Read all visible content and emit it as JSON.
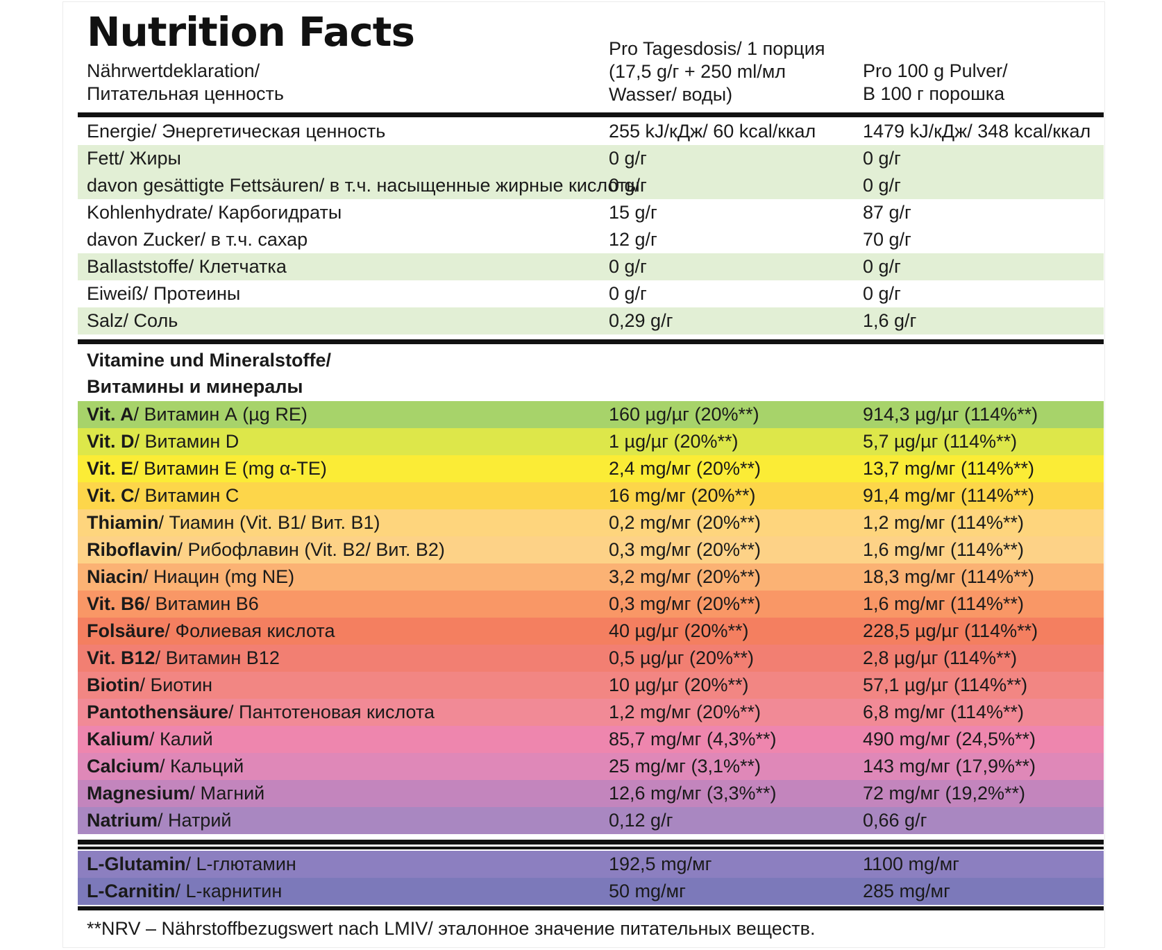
{
  "title": "Nutrition Facts",
  "header": {
    "label_line1": "Nährwertdeklaration/",
    "label_line2": "Питательная ценность",
    "col1_line1": "Pro Tagesdosis/ 1 порция",
    "col1_line2": "(17,5 g/г + 250 ml/мл",
    "col1_line3": "Wasser/ воды)",
    "col2_line1": "Pro 100 g Pulver/",
    "col2_line2": "В 100 г порошка"
  },
  "nutrients": [
    {
      "label": "Energie/ Энергетическая ценность",
      "per_serving": "255 kJ/кДж/ 60 kcal/ккал",
      "per_100g": "1479 kJ/кДж/ 348 kcal/ккал"
    },
    {
      "label": "Fett/ Жиры",
      "per_serving": "0 g/г",
      "per_100g": "0 g/г"
    },
    {
      "label": "davon gesättigte Fettsäuren/ в т.ч. насыщенные жирные кислоты",
      "per_serving": "0 g/г",
      "per_100g": "0 g/г"
    },
    {
      "label": "Kohlenhydrate/ Карбогидраты",
      "per_serving": "15 g/г",
      "per_100g": "87 g/г"
    },
    {
      "label": "davon Zucker/ в т.ч. сахар",
      "per_serving": "12 g/г",
      "per_100g": "70 g/г"
    },
    {
      "label": "Ballaststoffe/ Клетчатка",
      "per_serving": "0 g/г",
      "per_100g": "0 g/г"
    },
    {
      "label": "Eiweiß/ Протеины",
      "per_serving": "0 g/г",
      "per_100g": "0 g/г"
    },
    {
      "label": "Salz/ Соль",
      "per_serving": "0,29 g/г",
      "per_100g": "1,6 g/г"
    }
  ],
  "vitamins_section": {
    "title_line1": "Vitamine und Mineralstoffe/",
    "title_line2": "Витамины и минералы"
  },
  "vitamins": [
    {
      "bold": "Vit. A",
      "rest": "/ Витамин А (µg RE)",
      "per_serving": "160 µg/µг (20%**)",
      "per_100g": "914,3 µg/µг (114%**)",
      "color": "#a7d36a"
    },
    {
      "bold": "Vit. D",
      "rest": "/ Витамин D",
      "per_serving": "1 µg/µг (20%**)",
      "per_100g": "5,7 µg/µг (114%**)",
      "color": "#dde74a"
    },
    {
      "bold": "Vit. E",
      "rest": "/ Витамин Е (mg α-TE)",
      "per_serving": "2,4 mg/мг (20%**)",
      "per_100g": "13,7 mg/мг (114%**)",
      "color": "#fbec36"
    },
    {
      "bold": "Vit. C",
      "rest": "/ Витамин С",
      "per_serving": "16 mg/мг (20%**)",
      "per_100g": "91,4 mg/мг (114%**)",
      "color": "#fdd64a"
    },
    {
      "bold": "Thiamin",
      "rest": "/ Тиамин (Vit. B1/ Вит. B1)",
      "per_serving": "0,2 mg/мг (20%**)",
      "per_100g": "1,2 mg/мг (114%**)",
      "color": "#fed57d"
    },
    {
      "bold": "Riboflavin",
      "rest": "/ Рибофлавин (Vit. B2/ Вит. B2)",
      "per_serving": "0,3 mg/мг (20%**)",
      "per_100g": "1,6 mg/мг (114%**)",
      "color": "#fdd287"
    },
    {
      "bold": "Niacin",
      "rest": "/ Ниацин (mg NE)",
      "per_serving": "3,2 mg/мг (20%**)",
      "per_100g": "18,3 mg/мг (114%**)",
      "color": "#fbb274"
    },
    {
      "bold": "Vit. B6",
      "rest": "/ Витамин В6",
      "per_serving": "0,3 mg/мг (20%**)",
      "per_100g": "1,6 mg/мг (114%**)",
      "color": "#f99766"
    },
    {
      "bold": "Folsäure",
      "rest": "/ Фолиевая кислота",
      "per_serving": "40 µg/µг (20%**)",
      "per_100g": "228,5 µg/µг (114%**)",
      "color": "#f47f60"
    },
    {
      "bold": "Vit. B12",
      "rest": "/ Витамин В12",
      "per_serving": "0,5 µg/µг (20%**)",
      "per_100g": "2,8 µg/µг (114%**)",
      "color": "#f27f72"
    },
    {
      "bold": "Biotin",
      "rest": "/ Биотин",
      "per_serving": "10 µg/µг (20%**)",
      "per_100g": "57,1 µg/µг (114%**)",
      "color": "#f28683"
    },
    {
      "bold": "Pantothensäure",
      "rest": "/ Пантотеновая кислота",
      "per_serving": "1,2 mg/мг (20%**)",
      "per_100g": "6,8 mg/мг (114%**)",
      "color": "#f18a96"
    },
    {
      "bold": "Kalium",
      "rest": "/ Калий",
      "per_serving": "85,7 mg/мг (4,3%**)",
      "per_100g": "490 mg/мг (24,5%**)",
      "color": "#ee86ae"
    },
    {
      "bold": "Calcium",
      "rest": "/ Кальций",
      "per_serving": "25 mg/мг (3,1%**)",
      "per_100g": "143 mg/мг (17,9%**)",
      "color": "#df88b8"
    },
    {
      "bold": "Magnesium",
      "rest": "/ Магний",
      "per_serving": "12,6 mg/мг (3,3%**)",
      "per_100g": "72 mg/мг (19,2%**)",
      "color": "#c385bd"
    },
    {
      "bold": "Natrium",
      "rest": "/ Натрий",
      "per_serving": "0,12 g/г",
      "per_100g": "0,66 g/г",
      "color": "#a987c1"
    }
  ],
  "amino": [
    {
      "bold": "L-Glutamin",
      "rest": "/ L-глютамин",
      "per_serving": "192,5 mg/мг",
      "per_100g": "1100 mg/мг",
      "color": "#8c7fc0"
    },
    {
      "bold": "L-Carnitin",
      "rest": "/ L-карнитин",
      "per_serving": "50 mg/мг",
      "per_100g": "285 mg/мг",
      "color": "#7c79ba"
    }
  ],
  "colors": {
    "row_light_green": "#e2efd5",
    "rule": "#111111"
  },
  "footnote": "**NRV – Nährstoffbezugswert nach LMIV/ эталонное значение питательных веществ."
}
